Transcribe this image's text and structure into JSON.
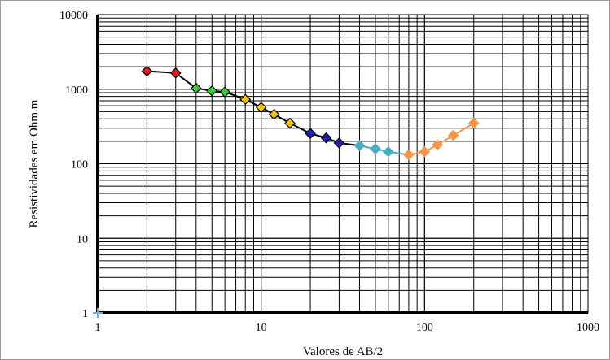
{
  "chart_data": {
    "type": "scatter",
    "title": "",
    "xlabel": "Valores de AB/2",
    "ylabel": "Resistividades em Ohm.m",
    "x_scale": "log",
    "y_scale": "log",
    "xlim": [
      1,
      1000
    ],
    "ylim": [
      1,
      10000
    ],
    "x_ticks": [
      "1",
      "10",
      "100",
      "1000"
    ],
    "y_ticks": [
      "1",
      "10",
      "100",
      "1000",
      "10000"
    ],
    "grid": true,
    "legend": "none",
    "series": [
      {
        "color": "#e31a1c",
        "x": [
          2,
          3
        ],
        "y": [
          1750,
          1650
        ]
      },
      {
        "color": "#33cc33",
        "x": [
          4,
          5,
          6
        ],
        "y": [
          1030,
          950,
          920
        ]
      },
      {
        "color": "#ffc000",
        "x": [
          8,
          10,
          12,
          15
        ],
        "y": [
          730,
          570,
          460,
          350
        ]
      },
      {
        "color": "#1f1fb4",
        "x": [
          20,
          25,
          30
        ],
        "y": [
          255,
          222,
          190
        ]
      },
      {
        "color": "#4bacc6",
        "x": [
          40,
          50,
          60
        ],
        "y": [
          175,
          158,
          145
        ]
      },
      {
        "color": "#f79646",
        "x": [
          80,
          100,
          120,
          150,
          200
        ],
        "y": [
          132,
          145,
          180,
          240,
          350
        ]
      }
    ],
    "connector_lines": [
      {
        "color": "#000000",
        "x": [
          2,
          3,
          4,
          5,
          6,
          8,
          10,
          12,
          15,
          20,
          25,
          30,
          40
        ],
        "y": [
          1750,
          1650,
          1030,
          950,
          920,
          730,
          570,
          460,
          350,
          255,
          222,
          190,
          175
        ]
      },
      {
        "color": "#4bacc6",
        "x": [
          40,
          50,
          60,
          80
        ],
        "y": [
          175,
          158,
          145,
          132
        ]
      },
      {
        "color": "#f79646",
        "x": [
          80,
          100,
          120,
          150,
          200
        ],
        "y": [
          132,
          145,
          180,
          240,
          350
        ]
      }
    ]
  }
}
